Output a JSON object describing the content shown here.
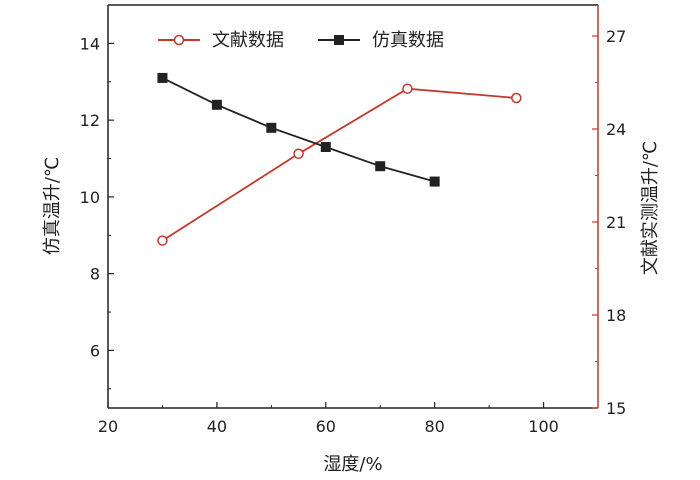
{
  "chart_data": {
    "type": "line",
    "xlabel": "湿度/%",
    "ylabel_left": "仿真温升/℃",
    "ylabel_right": "文献实测温升/℃",
    "xlim": [
      20,
      110
    ],
    "ylim_left": [
      4.5,
      15
    ],
    "ylim_right": [
      15,
      28
    ],
    "x_ticks": [
      20,
      40,
      60,
      80,
      100
    ],
    "y_ticks_left": [
      6,
      8,
      10,
      12,
      14
    ],
    "y_ticks_right": [
      15,
      18,
      21,
      24,
      27
    ],
    "grid": false,
    "legend_position": "top-center",
    "series": [
      {
        "name": "文献数据",
        "axis": "right",
        "color": "#c0392b",
        "marker": "open-circle",
        "x": [
          30,
          55,
          75,
          95
        ],
        "y": [
          20.4,
          23.2,
          25.3,
          25.0
        ]
      },
      {
        "name": "仿真数据",
        "axis": "left",
        "color": "#222222",
        "marker": "filled-square",
        "x": [
          30,
          40,
          50,
          60,
          70,
          80
        ],
        "y": [
          13.1,
          12.4,
          11.8,
          11.3,
          10.8,
          10.4
        ]
      }
    ],
    "colors": {
      "left_axis": "#222222",
      "right_axis": "#c0392b"
    }
  }
}
